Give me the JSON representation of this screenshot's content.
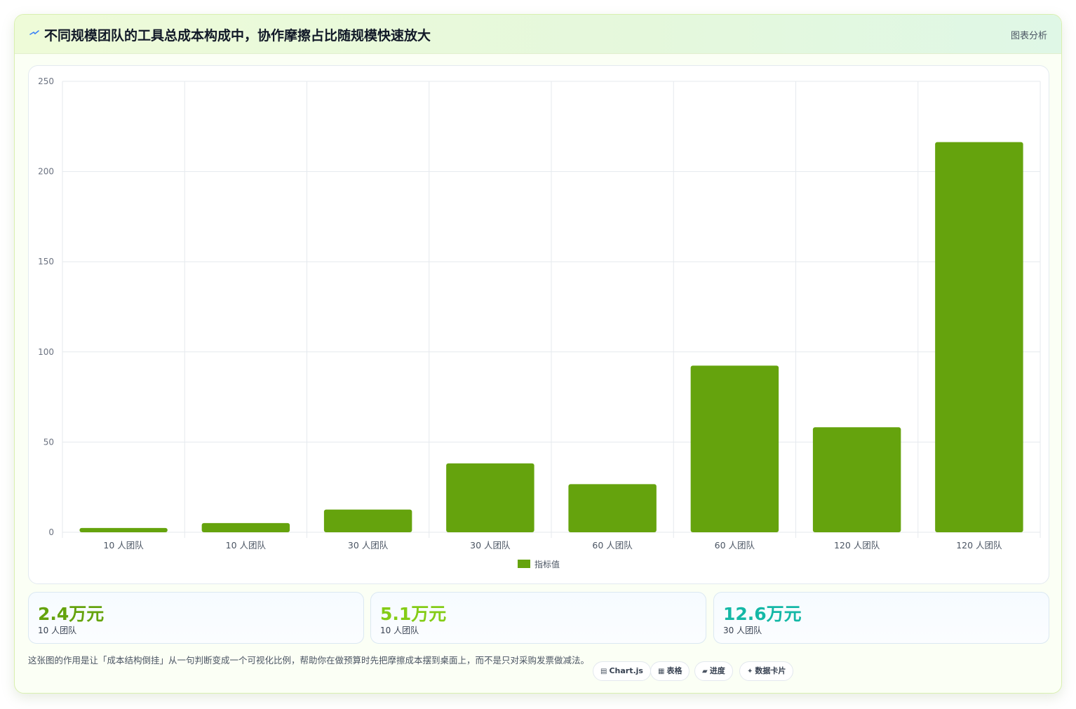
{
  "header": {
    "title": "不同规模团队的工具总成本构成中，协作摩擦占比随规模快速放大",
    "tag": "图表分析",
    "icon": "sparkle-icon"
  },
  "chart_data": {
    "type": "bar",
    "categories": [
      "10 人团队",
      "10 人团队",
      "30 人团队",
      "30 人团队",
      "60 人团队",
      "60 人团队",
      "120 人团队",
      "120 人团队"
    ],
    "series": [
      {
        "name": "指标值",
        "values": [
          2.4,
          5.1,
          12.6,
          38.2,
          26.7,
          92.4,
          58.2,
          216.3
        ],
        "color": "#65a30d"
      }
    ],
    "y_ticks": [
      "0",
      "50",
      "100",
      "150",
      "200",
      "250"
    ],
    "ylim": [
      0,
      250
    ],
    "grid": true,
    "legend": "bottom"
  },
  "stats": [
    {
      "value": "2.4万元",
      "label": "10 人团队",
      "color": "#65a30d"
    },
    {
      "value": "5.1万元",
      "label": "10 人团队",
      "color": "#84cc16"
    },
    {
      "value": "12.6万元",
      "label": "30 人团队",
      "color": "#14b8a6"
    }
  ],
  "footer": {
    "text": "这张图的作用是让「成本结构倒挂」从一句判断变成一个可视化比例，帮助你在做预算时先把摩擦成本摆到桌面上，而不是只对采购发票做减法。",
    "pills": [
      {
        "icon": "▤",
        "label": "Chart.js"
      },
      {
        "icon": "▦",
        "label": "表格"
      },
      {
        "icon": "▰",
        "label": "进度"
      },
      {
        "icon": "✦",
        "label": "数据卡片"
      }
    ]
  }
}
